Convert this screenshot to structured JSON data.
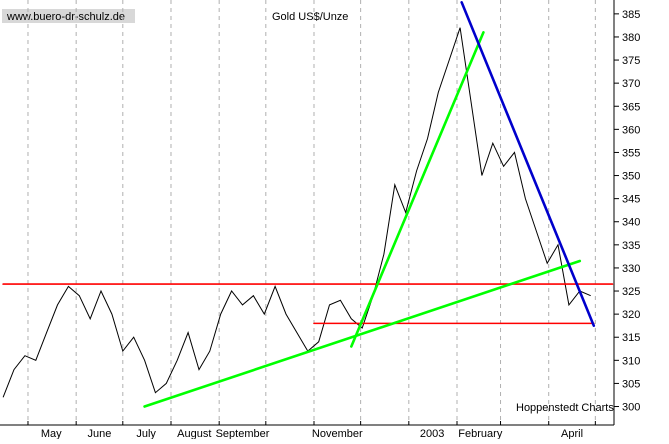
{
  "chart_data": {
    "type": "line",
    "title": "Gold US$/Unze",
    "watermark": "www.buero-dr-schulz.de",
    "credit": "Hoppenstedt Charts",
    "xlabel": "",
    "ylabel": "",
    "x_tick_labels": [
      "May",
      "June",
      "July",
      "August",
      "September",
      "November",
      "2003",
      "February",
      "April"
    ],
    "y_ticks": [
      300,
      305,
      310,
      315,
      320,
      325,
      330,
      335,
      340,
      345,
      350,
      355,
      360,
      365,
      370,
      375,
      380,
      385
    ],
    "ylim": [
      296,
      388
    ],
    "grid": "vertical dashed",
    "series": [
      {
        "color": "#000000",
        "x": [
          "2002-04-15",
          "2002-04-22",
          "2002-04-29",
          "2002-05-06",
          "2002-05-13",
          "2002-05-20",
          "2002-05-27",
          "2002-06-03",
          "2002-06-10",
          "2002-06-17",
          "2002-06-24",
          "2002-07-01",
          "2002-07-08",
          "2002-07-15",
          "2002-07-22",
          "2002-07-29",
          "2002-08-05",
          "2002-08-12",
          "2002-08-19",
          "2002-08-26",
          "2002-09-02",
          "2002-09-09",
          "2002-09-16",
          "2002-09-23",
          "2002-09-30",
          "2002-10-07",
          "2002-10-14",
          "2002-10-21",
          "2002-10-28",
          "2002-11-04",
          "2002-11-11",
          "2002-11-18",
          "2002-11-25",
          "2002-12-02",
          "2002-12-09",
          "2002-12-16",
          "2002-12-23",
          "2002-12-30",
          "2003-01-06",
          "2003-01-13",
          "2003-01-20",
          "2003-01-27",
          "2003-02-03",
          "2003-02-10",
          "2003-02-17",
          "2003-02-24",
          "2003-03-03",
          "2003-03-10",
          "2003-03-17",
          "2003-03-24",
          "2003-03-31",
          "2003-04-07",
          "2003-04-14",
          "2003-04-21",
          "2003-04-28"
        ],
        "values": [
          302,
          308,
          311,
          310,
          316,
          322,
          326,
          324,
          319,
          325,
          320,
          312,
          315,
          310,
          303,
          305,
          310,
          316,
          308,
          312,
          320,
          325,
          322,
          324,
          320,
          326,
          320,
          316,
          312,
          314,
          322,
          323,
          319,
          317,
          324,
          333,
          348,
          342,
          351,
          358,
          368,
          375,
          382,
          366,
          350,
          357,
          352,
          355,
          345,
          338,
          331,
          335,
          322,
          325,
          324
        ]
      }
    ],
    "trendlines": [
      {
        "color": "#ff0000",
        "label": "",
        "from": [
          "2002-04-15",
          326.5
        ],
        "to": [
          "2003-05-12",
          326.5
        ]
      },
      {
        "color": "#ff0000",
        "label": "",
        "from": [
          "2002-11-01",
          318
        ],
        "to": [
          "2003-04-30",
          318
        ]
      },
      {
        "color": "#00ff00",
        "label": "",
        "from": [
          "2002-07-15",
          300
        ],
        "to": [
          "2003-04-21",
          331.5
        ]
      },
      {
        "color": "#00ff00",
        "label": "",
        "from": [
          "2002-11-25",
          313
        ],
        "to": [
          "2003-02-18",
          381
        ]
      },
      {
        "color": "#0000cc",
        "label": "",
        "from": [
          "2003-02-04",
          387.5
        ],
        "to": [
          "2003-04-30",
          317.5
        ]
      }
    ]
  }
}
